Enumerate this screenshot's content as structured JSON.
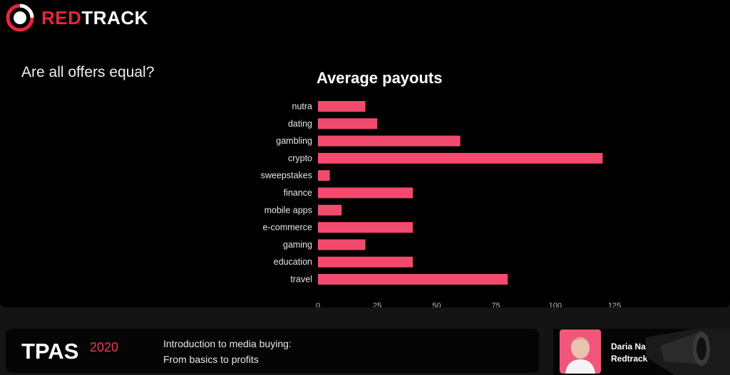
{
  "brand": {
    "name_red": "RED",
    "name_white": "TRACK"
  },
  "slide": {
    "question": "Are all offers equal?"
  },
  "chart_data": {
    "type": "bar",
    "orientation": "horizontal",
    "title": "Average payouts",
    "categories": [
      "nutra",
      "dating",
      "gambling",
      "crypto",
      "sweepstakes",
      "finance",
      "mobile apps",
      "e-commerce",
      "gaming",
      "education",
      "travel"
    ],
    "values": [
      20,
      25,
      60,
      120,
      5,
      40,
      10,
      40,
      20,
      40,
      80
    ],
    "xlim": [
      0,
      125
    ],
    "xticks": [
      0,
      25,
      50,
      75,
      100,
      125
    ],
    "grid": false,
    "bar_color": "#f24a6d"
  },
  "footer": {
    "event": "TPAS",
    "year": "2020",
    "talk_line1": "Introduction to media buying:",
    "talk_line2": "From basics to profits",
    "speaker_name": "Daria Nazarova",
    "speaker_company": "Redtrack"
  },
  "colors": {
    "accent": "#e8253a",
    "bar": "#f24a6d",
    "year": "#f03a57"
  }
}
